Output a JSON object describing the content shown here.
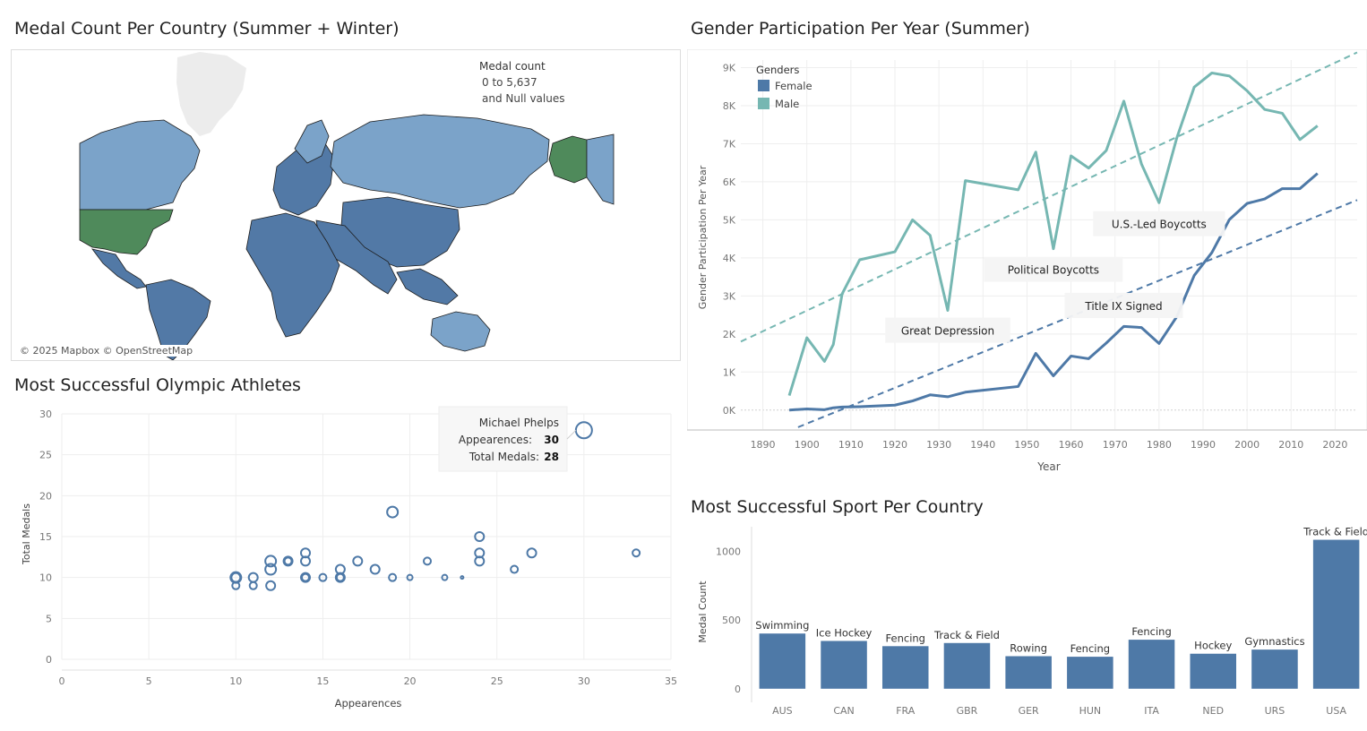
{
  "titles": {
    "map": "Medal Count Per Country (Summer + Winter)",
    "gender": "Gender Participation Per Year (Summer)",
    "athletes": "Most Successful Olympic Athletes",
    "sport": "Most Successful Sport Per Country"
  },
  "map": {
    "legend_title": "Medal count",
    "legend_range": "0 to 5,637",
    "legend_null": "and Null values",
    "attribution": "© 2025 Mapbox © OpenStreetMap",
    "colors": {
      "ocean": "#ffffff",
      "land_light": "#7ba3c9",
      "land_dark": "#5279a6",
      "land_top": "#4f8a5b",
      "greenland": "#ececec",
      "border": "#1d1d1d"
    }
  },
  "chart_data": [
    {
      "id": "gender",
      "type": "line",
      "xlabel": "Year",
      "ylabel": "Gender Participation Per Year",
      "xlim": [
        1885,
        2025
      ],
      "ylim": [
        -500,
        9200
      ],
      "xticks": [
        1890,
        1900,
        1910,
        1920,
        1930,
        1940,
        1950,
        1960,
        1970,
        1980,
        1990,
        2000,
        2010,
        2020
      ],
      "yticks": [
        0,
        1000,
        2000,
        3000,
        4000,
        5000,
        6000,
        7000,
        8000,
        9000
      ],
      "ytick_labels": [
        "0K",
        "1K",
        "2K",
        "3K",
        "4K",
        "5K",
        "6K",
        "7K",
        "8K",
        "9K"
      ],
      "legend": {
        "title": "Genders",
        "position": "top-left"
      },
      "series": [
        {
          "name": "Female",
          "color": "#4e79a7",
          "x": [
            1896,
            1900,
            1904,
            1906,
            1908,
            1912,
            1920,
            1924,
            1928,
            1932,
            1936,
            1948,
            1952,
            1956,
            1960,
            1964,
            1968,
            1972,
            1976,
            1980,
            1984,
            1988,
            1992,
            1996,
            2000,
            2004,
            2008,
            2012,
            2016
          ],
          "y": [
            0,
            30,
            10,
            60,
            80,
            90,
            130,
            240,
            400,
            350,
            470,
            620,
            1490,
            900,
            1420,
            1350,
            1760,
            2200,
            2170,
            1750,
            2450,
            3540,
            4140,
            5010,
            5430,
            5550,
            5820,
            5820,
            6220
          ]
        },
        {
          "name": "Male",
          "color": "#76b7b2",
          "x": [
            1896,
            1900,
            1904,
            1906,
            1908,
            1912,
            1920,
            1924,
            1928,
            1932,
            1936,
            1948,
            1952,
            1956,
            1960,
            1964,
            1968,
            1972,
            1976,
            1980,
            1984,
            1988,
            1992,
            1996,
            2000,
            2004,
            2008,
            2012,
            2016
          ],
          "y": [
            380,
            1900,
            1280,
            1720,
            3050,
            3950,
            4160,
            5000,
            4590,
            2620,
            6030,
            5790,
            6780,
            4240,
            6680,
            6360,
            6820,
            8120,
            6470,
            5450,
            7140,
            8490,
            8860,
            8780,
            8390,
            7900,
            7800,
            7110,
            7470
          ]
        }
      ],
      "trendlines": [
        {
          "name": "Female",
          "x": [
            1898,
            2025
          ],
          "y": [
            -450,
            5520
          ]
        },
        {
          "name": "Male",
          "x": [
            1885,
            2025
          ],
          "y": [
            1800,
            9400
          ]
        }
      ],
      "annotations": [
        {
          "text": "Great Depression",
          "x": 1932,
          "y": 2100
        },
        {
          "text": "Political Boycotts",
          "x": 1956,
          "y": 3700
        },
        {
          "text": "U.S.-Led Boycotts",
          "x": 1980,
          "y": 4900
        },
        {
          "text": "Title IX Signed",
          "x": 1972,
          "y": 2750
        }
      ]
    },
    {
      "id": "athletes",
      "type": "scatter",
      "xlabel": "Appearences",
      "ylabel": "Total Medals",
      "xlim": [
        0,
        35
      ],
      "ylim": [
        0,
        30
      ],
      "xticks": [
        0,
        5,
        10,
        15,
        20,
        25,
        30,
        35
      ],
      "yticks": [
        0,
        5,
        10,
        15,
        20,
        25,
        30
      ],
      "points": [
        {
          "x": 10,
          "y": 10,
          "r": 6
        },
        {
          "x": 10,
          "y": 10,
          "r": 5
        },
        {
          "x": 10,
          "y": 9,
          "r": 4
        },
        {
          "x": 11,
          "y": 10,
          "r": 5
        },
        {
          "x": 11,
          "y": 9,
          "r": 4
        },
        {
          "x": 12,
          "y": 12,
          "r": 6
        },
        {
          "x": 12,
          "y": 11,
          "r": 6
        },
        {
          "x": 12,
          "y": 9,
          "r": 5
        },
        {
          "x": 13,
          "y": 12,
          "r": 5
        },
        {
          "x": 13,
          "y": 12,
          "r": 4
        },
        {
          "x": 14,
          "y": 13,
          "r": 5
        },
        {
          "x": 14,
          "y": 12,
          "r": 5
        },
        {
          "x": 14,
          "y": 10,
          "r": 5
        },
        {
          "x": 14,
          "y": 10,
          "r": 4
        },
        {
          "x": 15,
          "y": 10,
          "r": 4
        },
        {
          "x": 16,
          "y": 11,
          "r": 5
        },
        {
          "x": 16,
          "y": 10,
          "r": 5
        },
        {
          "x": 16,
          "y": 10,
          "r": 4
        },
        {
          "x": 17,
          "y": 12,
          "r": 5
        },
        {
          "x": 18,
          "y": 11,
          "r": 5
        },
        {
          "x": 19,
          "y": 18,
          "r": 6
        },
        {
          "x": 19,
          "y": 10,
          "r": 4
        },
        {
          "x": 20,
          "y": 10,
          "r": 3
        },
        {
          "x": 21,
          "y": 12,
          "r": 4
        },
        {
          "x": 22,
          "y": 10,
          "r": 3
        },
        {
          "x": 23,
          "y": 10,
          "r": 1.5
        },
        {
          "x": 24,
          "y": 15,
          "r": 5
        },
        {
          "x": 24,
          "y": 13,
          "r": 5
        },
        {
          "x": 24,
          "y": 12,
          "r": 5
        },
        {
          "x": 26,
          "y": 11,
          "r": 4
        },
        {
          "x": 27,
          "y": 13,
          "r": 5
        },
        {
          "x": 30,
          "y": 28,
          "r": 9
        },
        {
          "x": 33,
          "y": 13,
          "r": 4
        }
      ],
      "tooltip": {
        "name": "Michael Phelps",
        "appearances_label": "Appearences:",
        "appearances": "30",
        "medals_label": "Total Medals:",
        "medals": "28"
      }
    },
    {
      "id": "sport",
      "type": "bar",
      "ylabel": "Medal Count",
      "ylim": [
        -60,
        1180
      ],
      "yticks": [
        0,
        500,
        1000
      ],
      "categories": [
        "AUS",
        "CAN",
        "FRA",
        "GBR",
        "GER",
        "HUN",
        "ITA",
        "NED",
        "URS",
        "USA"
      ],
      "values": [
        402,
        348,
        310,
        333,
        237,
        233,
        357,
        255,
        285,
        1085
      ],
      "labels": [
        "Swimming",
        "Ice Hockey",
        "Fencing",
        "Track & Field",
        "Rowing",
        "Fencing",
        "Fencing",
        "Hockey",
        "Gymnastics",
        "Track & Field"
      ],
      "color": "#4e79a7"
    }
  ]
}
